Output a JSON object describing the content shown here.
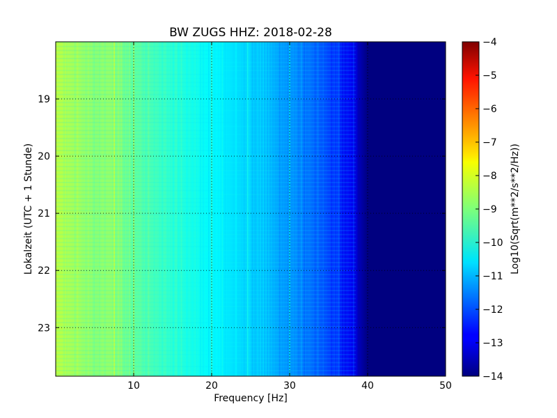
{
  "chart_data": {
    "type": "heatmap",
    "title": "BW ZUGS HHZ: 2018-02-28",
    "xlabel": "Frequency [Hz]",
    "ylabel": "Lokalzeit (UTC + 1 Stunde)",
    "xlim": [
      0,
      50
    ],
    "ylim": [
      18.0,
      23.85
    ],
    "y_inverted": true,
    "xticks": [
      10,
      20,
      30,
      40,
      50
    ],
    "yticks": [
      19,
      20,
      21,
      22,
      23
    ],
    "grid": true,
    "colormap": "jet",
    "colorbar": {
      "label": "Log10(Sqrt(m**2/s**2/Hz))",
      "range": [
        -14,
        -4
      ],
      "ticks": [
        -14,
        -13,
        -12,
        -11,
        -10,
        -9,
        -8,
        -7,
        -6,
        -5,
        -4
      ]
    },
    "frequency_profile": {
      "frequency_hz": [
        0,
        2,
        5,
        7,
        10,
        15,
        20,
        25,
        30,
        33,
        36,
        38,
        39,
        40,
        45,
        50
      ],
      "log10_amplitude": [
        -8.4,
        -8.6,
        -8.9,
        -8.8,
        -9.3,
        -9.8,
        -10.3,
        -10.7,
        -11.3,
        -11.7,
        -12.3,
        -12.9,
        -13.5,
        -14,
        -14,
        -14
      ]
    },
    "strong_lines_hz": [
      7.5,
      10,
      20,
      24.6,
      30,
      36.3,
      38.2
    ]
  }
}
